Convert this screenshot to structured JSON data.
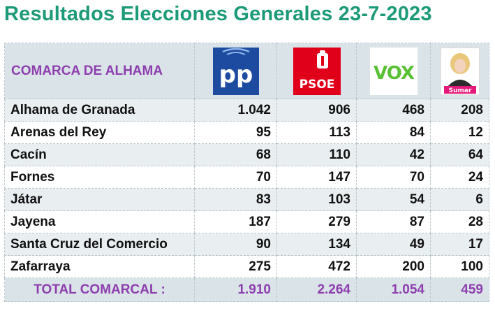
{
  "title": "Resultados Elecciones Generales 23-7-2023",
  "colors": {
    "title": "#1d9a78",
    "accent_purple": "#8e3fae",
    "pp": "#1d4b9f",
    "psoe": "#e1001a",
    "vox": "#5ac035",
    "sumar": "#e5197b"
  },
  "chart_data": {
    "type": "table",
    "region_label": "COMARCA DE ALHAMA",
    "parties": [
      {
        "name": "PP",
        "logo_text": "pp",
        "icon": "pp-logo-icon"
      },
      {
        "name": "PSOE",
        "logo_text": "PSOE",
        "icon": "psoe-logo-icon"
      },
      {
        "name": "VOX",
        "logo_text": "VOX",
        "icon": "vox-logo-icon"
      },
      {
        "name": "Sumar",
        "logo_text": "Sumar",
        "icon": "sumar-logo-icon"
      }
    ],
    "rows": [
      {
        "municipality": "Alhama de Granada",
        "values": [
          "1.042",
          "906",
          "468",
          "208"
        ]
      },
      {
        "municipality": "Arenas del Rey",
        "values": [
          "95",
          "113",
          "84",
          "12"
        ]
      },
      {
        "municipality": "Cacín",
        "values": [
          "68",
          "110",
          "42",
          "64"
        ]
      },
      {
        "municipality": "Fornes",
        "values": [
          "70",
          "147",
          "70",
          "24"
        ]
      },
      {
        "municipality": "Játar",
        "values": [
          "83",
          "103",
          "54",
          "6"
        ]
      },
      {
        "municipality": "Jayena",
        "values": [
          "187",
          "279",
          "87",
          "28"
        ]
      },
      {
        "municipality": "Santa Cruz del Comercio",
        "values": [
          "90",
          "134",
          "49",
          "17"
        ]
      },
      {
        "municipality": "Zafarraya",
        "values": [
          "275",
          "472",
          "200",
          "100"
        ]
      }
    ],
    "total": {
      "label": "TOTAL COMARCAL :",
      "values": [
        "1.910",
        "2.264",
        "1.054",
        "459"
      ]
    }
  }
}
